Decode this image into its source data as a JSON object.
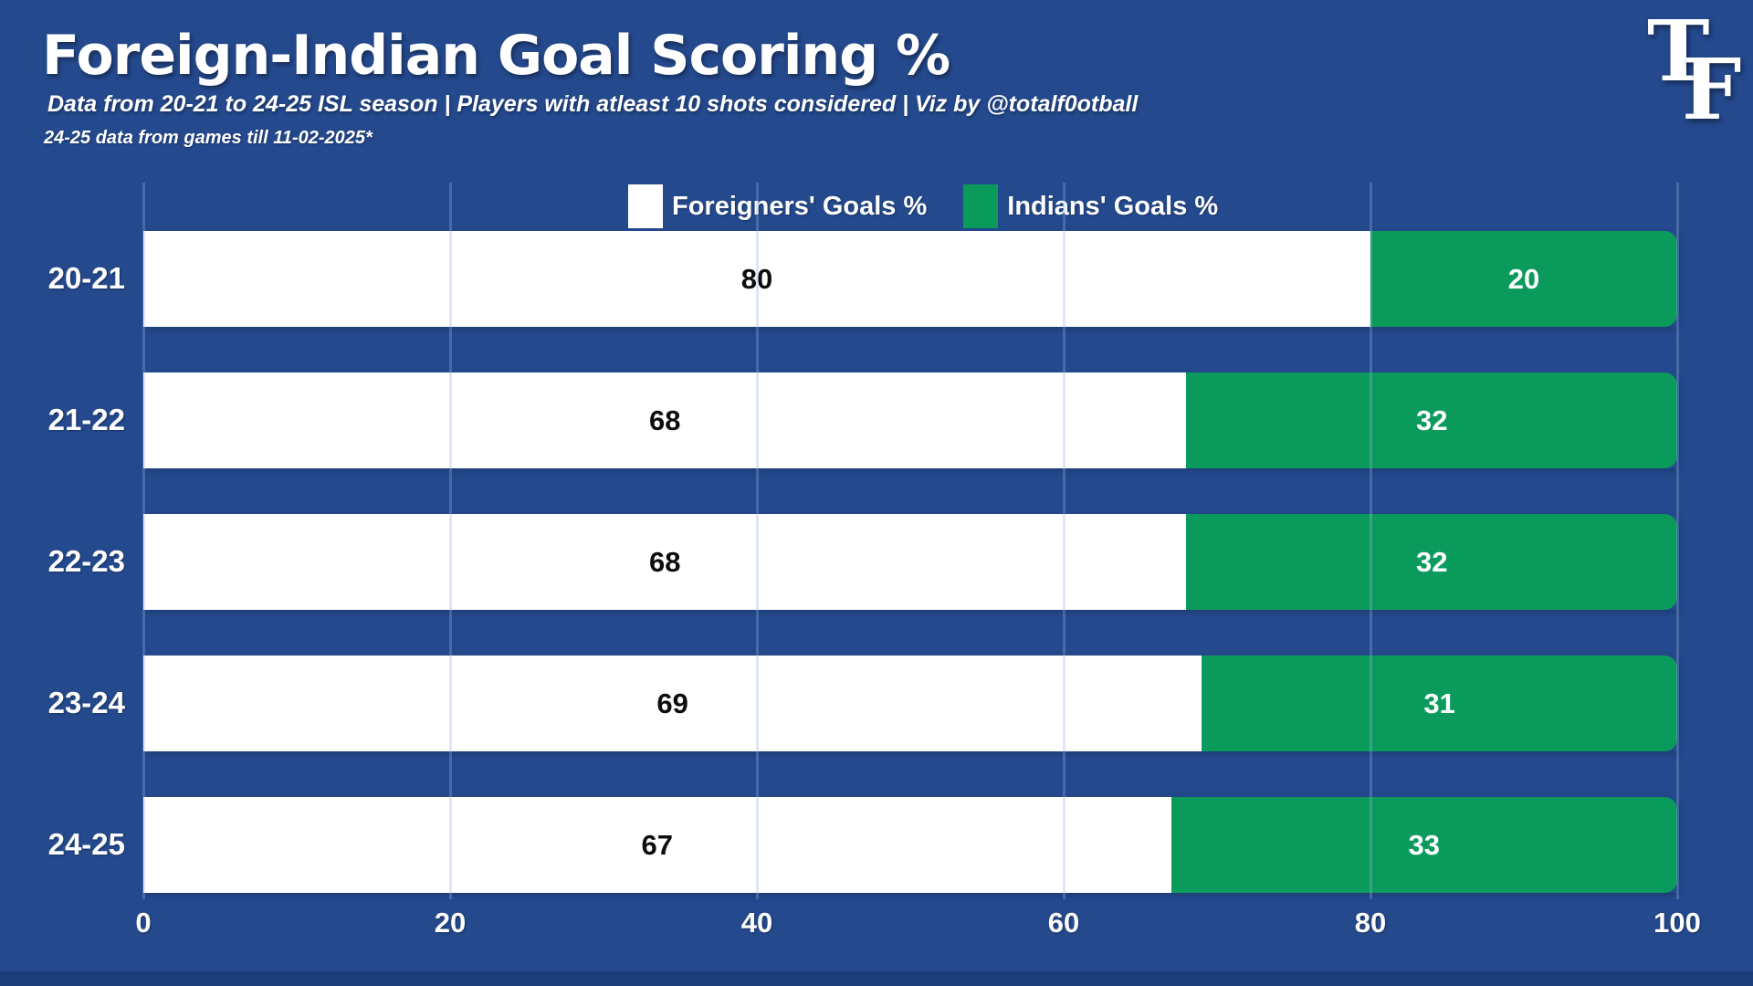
{
  "header": {
    "title": "Foreign-Indian Goal Scoring %",
    "subtitle": "Data from 20-21 to 24-25 ISL season | Players with atleast 10 shots considered | Viz by @totalf0otball",
    "note": "24-25 data from games till 11-02-2025*",
    "logo": {
      "t": "T",
      "f": "F"
    }
  },
  "legend": [
    {
      "label": "Foreigners' Goals %",
      "color": "#FFFFFF"
    },
    {
      "label": "Indians' Goals %",
      "color": "#0A9B5C"
    }
  ],
  "chart_data": {
    "type": "bar",
    "orientation": "horizontal",
    "stacked": true,
    "title": "Foreign-Indian Goal Scoring %",
    "categories": [
      "20-21",
      "21-22",
      "22-23",
      "23-24",
      "24-25"
    ],
    "series": [
      {
        "name": "Foreigners' Goals %",
        "color": "#FFFFFF",
        "values": [
          80,
          68,
          68,
          69,
          67
        ]
      },
      {
        "name": "Indians' Goals %",
        "color": "#0A9B5C",
        "values": [
          20,
          32,
          32,
          31,
          33
        ]
      }
    ],
    "xlim": [
      0,
      100
    ],
    "xticks": [
      0,
      20,
      40,
      60,
      80,
      100
    ],
    "grid": true,
    "legend_position": "top"
  },
  "colors": {
    "background": "#24498D",
    "footer_strip": "#1B3D78",
    "foreign_bar": "#FFFFFF",
    "indian_bar": "#0A9B5C",
    "text": "#FFFFFF",
    "value_on_white": "#0D0D0D",
    "gridline": "rgba(150,180,225,0.32)"
  }
}
